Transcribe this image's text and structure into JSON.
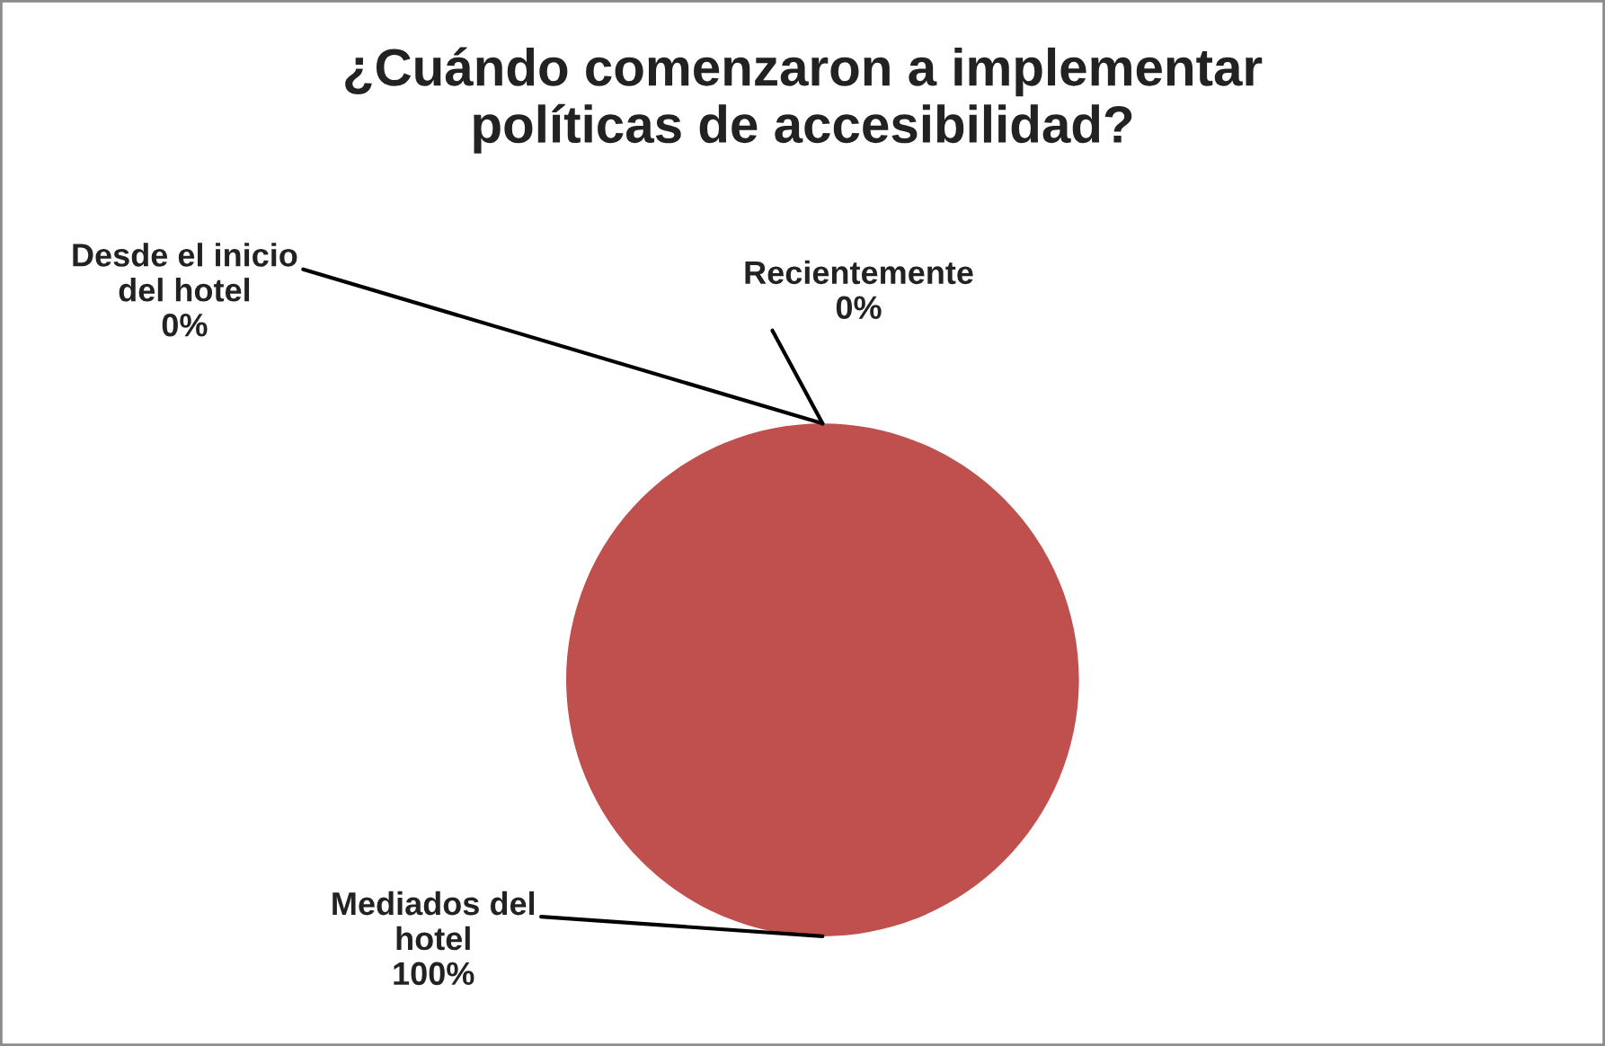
{
  "chart_data": {
    "type": "pie",
    "title": "¿Cuándo comenzaron a implementar\npolíticas de accesibilidad?",
    "categories": [
      "Desde el inicio\ndel hotel",
      "Mediados del\nhotel",
      "Recientemente"
    ],
    "values": [
      0,
      100,
      0
    ],
    "colors": [
      "#4f81bd",
      "#c0504d",
      "#9bbb59"
    ],
    "value_labels": [
      "0%",
      "100%",
      "0%"
    ],
    "legend": false
  }
}
